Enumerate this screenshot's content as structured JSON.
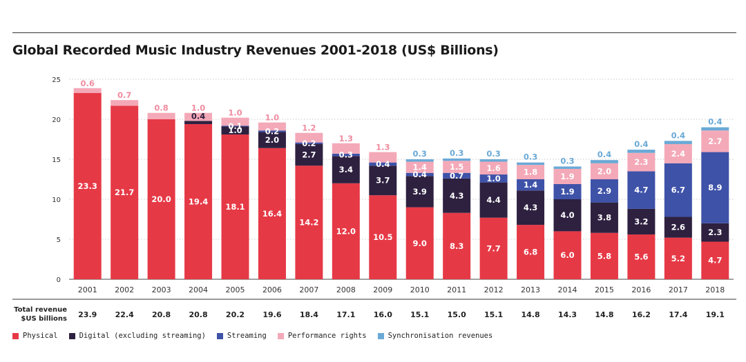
{
  "chart_data": {
    "type": "bar",
    "stacked": true,
    "title": "Global Recorded Music Industry Revenues 2001-2018 (US$ Billions)",
    "ylim": [
      0,
      25
    ],
    "yticks": [
      0,
      5,
      10,
      15,
      20,
      25
    ],
    "grid": true,
    "legend_position": "bottom-left",
    "categories": [
      "2001",
      "2002",
      "2003",
      "2004",
      "2005",
      "2006",
      "2007",
      "2008",
      "2009",
      "2010",
      "2011",
      "2012",
      "2013",
      "2014",
      "2015",
      "2016",
      "2017",
      "2018"
    ],
    "series": [
      {
        "name": "Physical",
        "color": "#e63946",
        "values": [
          23.3,
          21.7,
          20.0,
          19.4,
          18.1,
          16.4,
          14.2,
          12.0,
          10.5,
          9.0,
          8.3,
          7.7,
          6.8,
          6.0,
          5.8,
          5.6,
          5.2,
          4.7
        ]
      },
      {
        "name": "Digital (excluding streaming)",
        "color": "#2e2140",
        "values": [
          0,
          0,
          0,
          0.4,
          1.0,
          2.0,
          2.7,
          3.4,
          3.7,
          3.9,
          4.3,
          4.4,
          4.3,
          4.0,
          3.8,
          3.2,
          2.6,
          2.3
        ]
      },
      {
        "name": "Streaming",
        "color": "#3e52a8",
        "values": [
          0,
          0,
          0,
          0,
          0.1,
          0.2,
          0.2,
          0.3,
          0.4,
          0.4,
          0.7,
          1.0,
          1.4,
          1.9,
          2.9,
          4.7,
          6.7,
          8.9
        ]
      },
      {
        "name": "Performance rights",
        "color": "#f4a9b8",
        "values": [
          0.6,
          0.7,
          0.8,
          1.0,
          1.0,
          1.0,
          1.2,
          1.3,
          1.3,
          1.4,
          1.5,
          1.6,
          1.8,
          1.9,
          2.0,
          2.3,
          2.4,
          2.7
        ]
      },
      {
        "name": "Synchronisation revenues",
        "color": "#6aa9d6",
        "values": [
          0,
          0,
          0,
          0,
          0,
          0,
          0,
          0,
          0,
          0.3,
          0.3,
          0.3,
          0.3,
          0.3,
          0.4,
          0.4,
          0.4,
          0.4
        ]
      }
    ],
    "totals_label": [
      "Total revenue",
      "$US billions"
    ],
    "totals": [
      "23.9",
      "22.4",
      "20.8",
      "20.8",
      "20.2",
      "19.6",
      "18.4",
      "17.1",
      "16.0",
      "15.1",
      "15.0",
      "15.1",
      "14.8",
      "14.3",
      "14.8",
      "16.2",
      "17.4",
      "19.1"
    ]
  }
}
